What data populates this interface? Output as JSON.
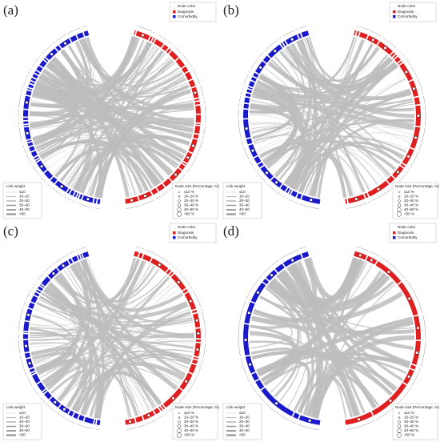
{
  "panels": [
    {
      "label": "(a)"
    },
    {
      "label": "(b)"
    },
    {
      "label": "(c)"
    },
    {
      "label": "(d)"
    }
  ],
  "legend": {
    "node_color_title": "Node color",
    "node_colors": [
      "Diagnosis",
      "Comorbidity"
    ],
    "link_weight_title": "Link weight",
    "link_weights": [
      "≤10",
      "10–20",
      "20–30",
      "30–40",
      "40–50",
      ">50"
    ],
    "node_size_title": "Node size (Percentage, %)",
    "node_sizes": [
      "≤10 %",
      "10–20 %",
      "20–30 %",
      "30–40 %",
      "40–50 %",
      ">50 %"
    ]
  }
}
